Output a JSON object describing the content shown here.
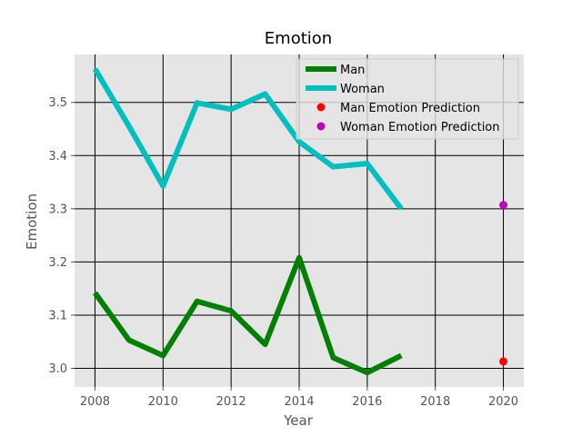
{
  "chart_data": {
    "type": "line",
    "title": "Emotion",
    "xlabel": "Year",
    "ylabel": "Emotion",
    "xlim": [
      2007.4,
      2020.6
    ],
    "ylim": [
      2.965,
      3.59
    ],
    "xticks": [
      2008,
      2010,
      2012,
      2014,
      2016,
      2018,
      2020
    ],
    "yticks": [
      3.0,
      3.1,
      3.2,
      3.3,
      3.4,
      3.5
    ],
    "grid": true,
    "legend_position": "top-right",
    "series": [
      {
        "name": "Man",
        "kind": "line",
        "color": "#008000",
        "x": [
          2008,
          2009,
          2010,
          2011,
          2012,
          2013,
          2014,
          2015,
          2016,
          2017
        ],
        "y": [
          3.142,
          3.053,
          3.024,
          3.126,
          3.108,
          3.045,
          3.208,
          3.02,
          2.992,
          3.024
        ]
      },
      {
        "name": "Woman",
        "kind": "line",
        "color": "#00bfbf",
        "x": [
          2008,
          2009,
          2010,
          2011,
          2012,
          2013,
          2014,
          2015,
          2016,
          2017
        ],
        "y": [
          3.563,
          3.455,
          3.343,
          3.499,
          3.487,
          3.516,
          3.426,
          3.379,
          3.385,
          3.3
        ]
      },
      {
        "name": "Man Emotion Prediction",
        "kind": "point",
        "color": "#ff0000",
        "x": [
          2020
        ],
        "y": [
          3.013
        ]
      },
      {
        "name": "Woman Emotion Prediction",
        "kind": "point",
        "color": "#bf00bf",
        "x": [
          2020
        ],
        "y": [
          3.307
        ]
      }
    ]
  }
}
